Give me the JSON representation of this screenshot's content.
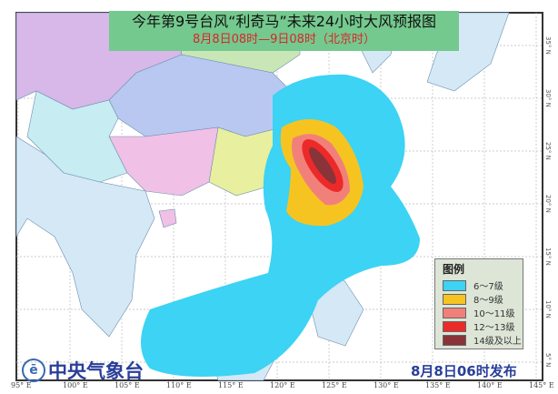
{
  "header": {
    "title": "今年第9号台风“利奇马”未来24小时大风预报图",
    "subtitle": "8月8日08时—9日08时（北京时）"
  },
  "legend": {
    "title": "图例",
    "items": [
      {
        "label": "6～7级",
        "color": "#3cd3f4"
      },
      {
        "label": "8～9级",
        "color": "#f6c420"
      },
      {
        "label": "10～11级",
        "color": "#f2807a"
      },
      {
        "label": "12～13级",
        "color": "#ec2a2a"
      },
      {
        "label": "14级及以上",
        "color": "#8a3338"
      }
    ]
  },
  "footer": {
    "agency": "中央气象台",
    "issued": "8月8日06时发布"
  },
  "axes": {
    "longitudes": [
      "95° E",
      "100° E",
      "105° E",
      "110° E",
      "115° E",
      "120° E",
      "125° E",
      "130° E",
      "135° E",
      "140° E",
      "145° E"
    ],
    "latitudes": [
      "35° N",
      "30° N",
      "25° N",
      "20° N",
      "15° N",
      "10° N",
      "5° N"
    ]
  }
}
